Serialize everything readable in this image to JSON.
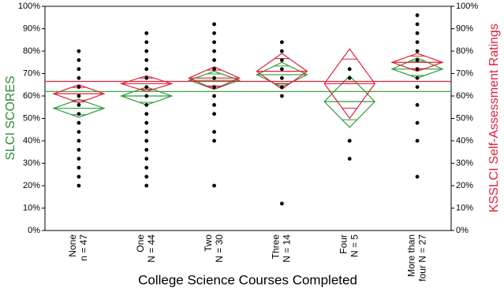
{
  "chart_data": {
    "type": "means-diamond",
    "y_label": "SLCI SCORES",
    "y2_label": "KSSLCI Self-Assessment Ratings",
    "x_label": "College Science Courses Completed",
    "x_labels": [
      [
        "None",
        "n = 47"
      ],
      [
        "One",
        "N = 44"
      ],
      [
        "Two",
        "N = 30"
      ],
      [
        "Three",
        "N = 14"
      ],
      [
        "Four",
        "N = 5"
      ],
      [
        "More than",
        "four N = 27"
      ]
    ],
    "ylim": [
      0,
      100
    ],
    "yticks": [
      {
        "value": 0,
        "label": "0%"
      },
      {
        "value": 10,
        "label": "10%"
      },
      {
        "value": 20,
        "label": "20%"
      },
      {
        "value": 30,
        "label": "30%"
      },
      {
        "value": 40,
        "label": "40%"
      },
      {
        "value": 50,
        "label": "50%"
      },
      {
        "value": 60,
        "label": "60%"
      },
      {
        "value": 70,
        "label": "70%"
      },
      {
        "value": 80,
        "label": "80%"
      },
      {
        "value": 90,
        "label": "90%"
      },
      {
        "value": 100,
        "label": "100%"
      }
    ],
    "y2lim": [
      0,
      100
    ],
    "y2ticks": [
      {
        "value": 0,
        "label": "0%"
      },
      {
        "value": 10,
        "label": "10%"
      },
      {
        "value": 20,
        "label": "20%"
      },
      {
        "value": 30,
        "label": "30%"
      },
      {
        "value": 40,
        "label": "40%"
      },
      {
        "value": 50,
        "label": "50%"
      },
      {
        "value": 60,
        "label": "60%"
      },
      {
        "value": 70,
        "label": "70%"
      },
      {
        "value": 80,
        "label": "80%"
      },
      {
        "value": 90,
        "label": "90%"
      },
      {
        "value": 100,
        "label": "100%"
      }
    ],
    "y_label_color": "#2e8b3a",
    "y2_label_color": "#e0203a",
    "series": [
      {
        "color": "#2e9b3a",
        "axis": "y",
        "grand_mean": 62,
        "means": [
          54.5,
          60,
          67,
          69.5,
          57.5,
          72
        ],
        "lower": [
          50.5,
          56,
          63,
          64,
          46,
          68
        ],
        "upper": [
          58.5,
          64,
          71,
          75,
          69,
          77
        ]
      },
      {
        "color": "#e0203a",
        "axis": "y2",
        "grand_mean": 66.5,
        "means": [
          61,
          65.5,
          68,
          71,
          65.5,
          75
        ],
        "lower": [
          57,
          62,
          63,
          63,
          50,
          71
        ],
        "upper": [
          65,
          69,
          73,
          79,
          81,
          79
        ]
      }
    ],
    "points": {
      "color": "#000000",
      "values": [
        [
          20,
          24,
          28,
          32,
          36,
          40,
          44,
          48,
          52,
          56,
          60,
          64,
          68,
          72,
          76,
          80
        ],
        [
          20,
          24,
          28,
          32,
          36,
          40,
          44,
          48,
          52,
          56,
          60,
          64,
          68,
          72,
          76,
          80,
          84,
          88
        ],
        [
          20,
          40,
          44,
          52,
          56,
          60,
          64,
          68,
          72,
          76,
          80,
          84,
          88,
          92
        ],
        [
          12,
          60,
          64,
          68,
          72,
          76,
          80,
          84
        ],
        [
          32,
          40,
          68,
          72
        ],
        [
          24,
          40,
          48,
          56,
          64,
          68,
          72,
          76,
          80,
          84,
          88,
          92,
          96
        ]
      ]
    }
  }
}
